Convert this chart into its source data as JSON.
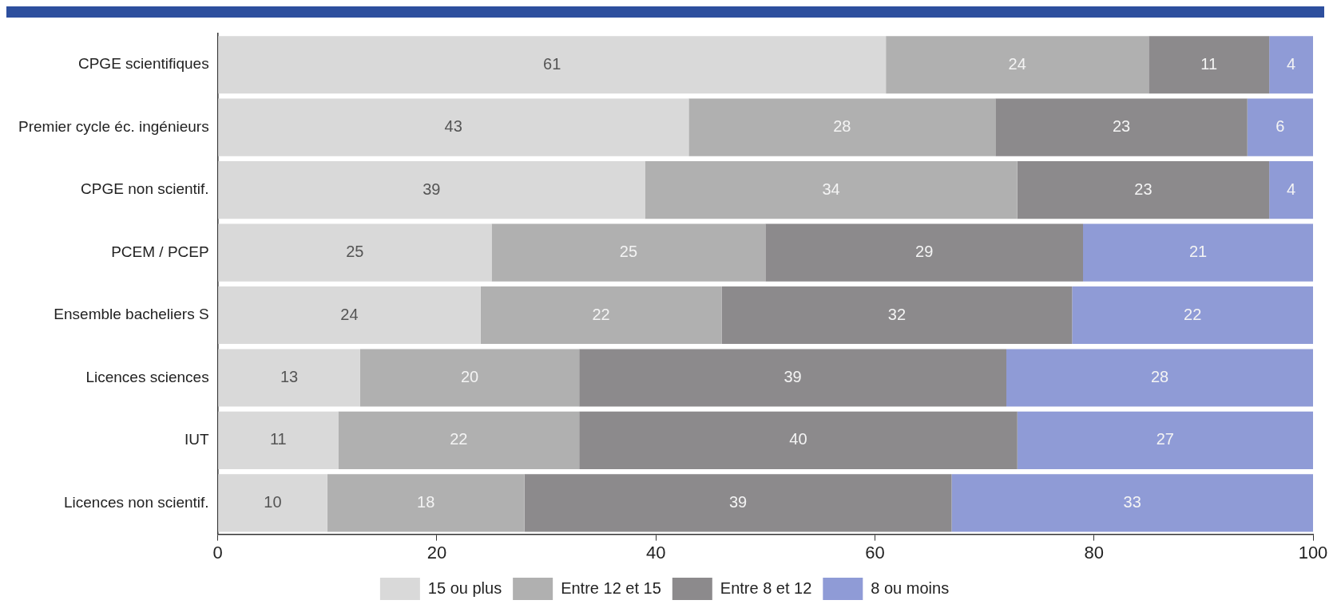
{
  "chart_data": {
    "type": "bar",
    "orientation": "horizontal",
    "stacked": true,
    "data_labels": true,
    "grid": false,
    "legend": "bottom",
    "categories": [
      "CPGE scientifiques",
      "Premier cycle éc. ingénieurs",
      "CPGE non scientif.",
      "PCEM / PCEP",
      "Ensemble bacheliers S",
      "Licences sciences",
      "IUT",
      "Licences non scientif."
    ],
    "series": [
      {
        "name": "15 ou plus",
        "color": "#d9d9d9",
        "values": [
          61,
          43,
          39,
          25,
          24,
          13,
          11,
          10
        ]
      },
      {
        "name": "Entre 12 et 15",
        "color": "#b0b0b0",
        "values": [
          24,
          28,
          34,
          25,
          22,
          20,
          22,
          18
        ]
      },
      {
        "name": "Entre 8 et 12",
        "color": "#8c8a8c",
        "values": [
          11,
          23,
          23,
          29,
          32,
          39,
          40,
          39
        ]
      },
      {
        "name": "8 ou moins",
        "color": "#8f9bd6",
        "values": [
          4,
          6,
          4,
          21,
          22,
          28,
          27,
          33
        ]
      }
    ],
    "xlim": [
      0,
      100
    ],
    "xticks": [
      0,
      20,
      40,
      60,
      80,
      100
    ]
  }
}
